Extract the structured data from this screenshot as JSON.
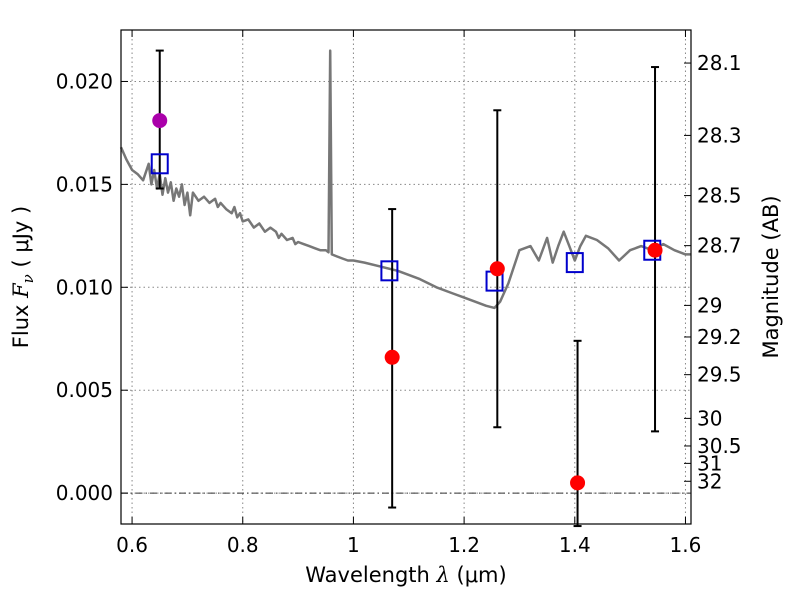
{
  "chart_data": {
    "type": "scatter",
    "xlabel_parts": {
      "prefix": "Wavelength  ",
      "symbol": "λ",
      "unit": " (μm)"
    },
    "ylabel_parts": {
      "prefix": "Flux  ",
      "symbol": "F",
      "subscript": "ν",
      "unit": "  ( μJy )"
    },
    "ylabel_right": "Magnitude (AB)",
    "xlim": [
      0.58,
      1.61
    ],
    "ylim": [
      -0.0015,
      0.0225
    ],
    "x_ticks": [
      {
        "value": 0.6,
        "label": "0.6"
      },
      {
        "value": 0.8,
        "label": "0.8"
      },
      {
        "value": 1.0,
        "label": "1"
      },
      {
        "value": 1.2,
        "label": "1.2"
      },
      {
        "value": 1.4,
        "label": "1.4"
      },
      {
        "value": 1.6,
        "label": "1.6"
      }
    ],
    "y_ticks": [
      {
        "value": 0.0,
        "label": "0.000"
      },
      {
        "value": 0.005,
        "label": "0.005"
      },
      {
        "value": 0.01,
        "label": "0.010"
      },
      {
        "value": 0.015,
        "label": "0.015"
      },
      {
        "value": 0.02,
        "label": "0.020"
      }
    ],
    "right_ticks": [
      {
        "value": 28.1,
        "label": "28.1"
      },
      {
        "value": 28.3,
        "label": "28.3"
      },
      {
        "value": 28.5,
        "label": "28.5"
      },
      {
        "value": 28.7,
        "label": "28.7"
      },
      {
        "value": 29.0,
        "label": "29"
      },
      {
        "value": 29.2,
        "label": "29.2"
      },
      {
        "value": 29.5,
        "label": "29.5"
      },
      {
        "value": 30.0,
        "label": "30"
      },
      {
        "value": 30.5,
        "label": "30.5"
      },
      {
        "value": 31.0,
        "label": "31"
      },
      {
        "value": 32.0,
        "label": "32"
      }
    ],
    "grid": true,
    "zero_line": true,
    "colors": {
      "template": "#777777",
      "observed": "#ff0000",
      "observed_special": "#aa00aa",
      "model": "#0000cc",
      "errorbar": "#000000",
      "grid": "#888888"
    },
    "template_spectrum": [
      [
        0.58,
        0.0168
      ],
      [
        0.59,
        0.0162
      ],
      [
        0.6,
        0.0157
      ],
      [
        0.61,
        0.0155
      ],
      [
        0.62,
        0.0152
      ],
      [
        0.63,
        0.016
      ],
      [
        0.635,
        0.015
      ],
      [
        0.64,
        0.0157
      ],
      [
        0.645,
        0.0148
      ],
      [
        0.65,
        0.0155
      ],
      [
        0.655,
        0.0145
      ],
      [
        0.66,
        0.0153
      ],
      [
        0.665,
        0.0146
      ],
      [
        0.67,
        0.0151
      ],
      [
        0.675,
        0.0142
      ],
      [
        0.68,
        0.0148
      ],
      [
        0.685,
        0.0144
      ],
      [
        0.69,
        0.015
      ],
      [
        0.695,
        0.014
      ],
      [
        0.7,
        0.0146
      ],
      [
        0.705,
        0.0135
      ],
      [
        0.71,
        0.0146
      ],
      [
        0.72,
        0.0142
      ],
      [
        0.73,
        0.0144
      ],
      [
        0.74,
        0.0141
      ],
      [
        0.75,
        0.0143
      ],
      [
        0.755,
        0.0139
      ],
      [
        0.76,
        0.0141
      ],
      [
        0.77,
        0.0138
      ],
      [
        0.78,
        0.0136
      ],
      [
        0.785,
        0.0139
      ],
      [
        0.79,
        0.0134
      ],
      [
        0.795,
        0.0136
      ],
      [
        0.8,
        0.0132
      ],
      [
        0.81,
        0.0133
      ],
      [
        0.82,
        0.0129
      ],
      [
        0.83,
        0.0131
      ],
      [
        0.84,
        0.0127
      ],
      [
        0.85,
        0.0129
      ],
      [
        0.86,
        0.0127
      ],
      [
        0.865,
        0.0124
      ],
      [
        0.87,
        0.0126
      ],
      [
        0.88,
        0.0123
      ],
      [
        0.89,
        0.0124
      ],
      [
        0.895,
        0.0121
      ],
      [
        0.9,
        0.0122
      ],
      [
        0.91,
        0.0121
      ],
      [
        0.92,
        0.012
      ],
      [
        0.93,
        0.0119
      ],
      [
        0.94,
        0.0118
      ],
      [
        0.95,
        0.0118
      ],
      [
        0.955,
        0.0117
      ],
      [
        0.958,
        0.0215
      ],
      [
        0.961,
        0.0116
      ],
      [
        0.97,
        0.0115
      ],
      [
        0.98,
        0.0114
      ],
      [
        0.99,
        0.0113
      ],
      [
        1.0,
        0.0113
      ],
      [
        1.02,
        0.0112
      ],
      [
        1.05,
        0.011
      ],
      [
        1.08,
        0.0108
      ],
      [
        1.1,
        0.0106
      ],
      [
        1.12,
        0.0104
      ],
      [
        1.15,
        0.01
      ],
      [
        1.18,
        0.0097
      ],
      [
        1.2,
        0.0095
      ],
      [
        1.22,
        0.0093
      ],
      [
        1.24,
        0.0091
      ],
      [
        1.255,
        0.009
      ],
      [
        1.265,
        0.0093
      ],
      [
        1.28,
        0.0102
      ],
      [
        1.3,
        0.0118
      ],
      [
        1.32,
        0.012
      ],
      [
        1.335,
        0.0113
      ],
      [
        1.35,
        0.0124
      ],
      [
        1.36,
        0.0112
      ],
      [
        1.37,
        0.012
      ],
      [
        1.38,
        0.0127
      ],
      [
        1.39,
        0.012
      ],
      [
        1.4,
        0.0113
      ],
      [
        1.41,
        0.012
      ],
      [
        1.42,
        0.0125
      ],
      [
        1.44,
        0.0123
      ],
      [
        1.46,
        0.0119
      ],
      [
        1.48,
        0.0113
      ],
      [
        1.5,
        0.0118
      ],
      [
        1.52,
        0.012
      ],
      [
        1.54,
        0.0118
      ],
      [
        1.56,
        0.0121
      ],
      [
        1.58,
        0.0118
      ],
      [
        1.6,
        0.0116
      ],
      [
        1.61,
        0.0116
      ]
    ],
    "observed": [
      {
        "x": 0.65,
        "y": 0.0181,
        "yerr_low": 0.0148,
        "yerr_high": 0.0215,
        "color_key": "observed_special"
      },
      {
        "x": 1.07,
        "y": 0.0066,
        "yerr_low": -0.0007,
        "yerr_high": 0.0138,
        "color_key": "observed"
      },
      {
        "x": 1.26,
        "y": 0.0109,
        "yerr_low": 0.0032,
        "yerr_high": 0.0186,
        "color_key": "observed"
      },
      {
        "x": 1.405,
        "y": 0.0005,
        "yerr_low": -0.0016,
        "yerr_high": 0.0074,
        "color_key": "observed"
      },
      {
        "x": 1.545,
        "y": 0.0118,
        "yerr_low": 0.003,
        "yerr_high": 0.0207,
        "color_key": "observed"
      }
    ],
    "model": [
      {
        "x": 0.65,
        "y": 0.016
      },
      {
        "x": 1.065,
        "y": 0.0108
      },
      {
        "x": 1.255,
        "y": 0.0103
      },
      {
        "x": 1.4,
        "y": 0.0112
      },
      {
        "x": 1.54,
        "y": 0.0118
      }
    ]
  }
}
